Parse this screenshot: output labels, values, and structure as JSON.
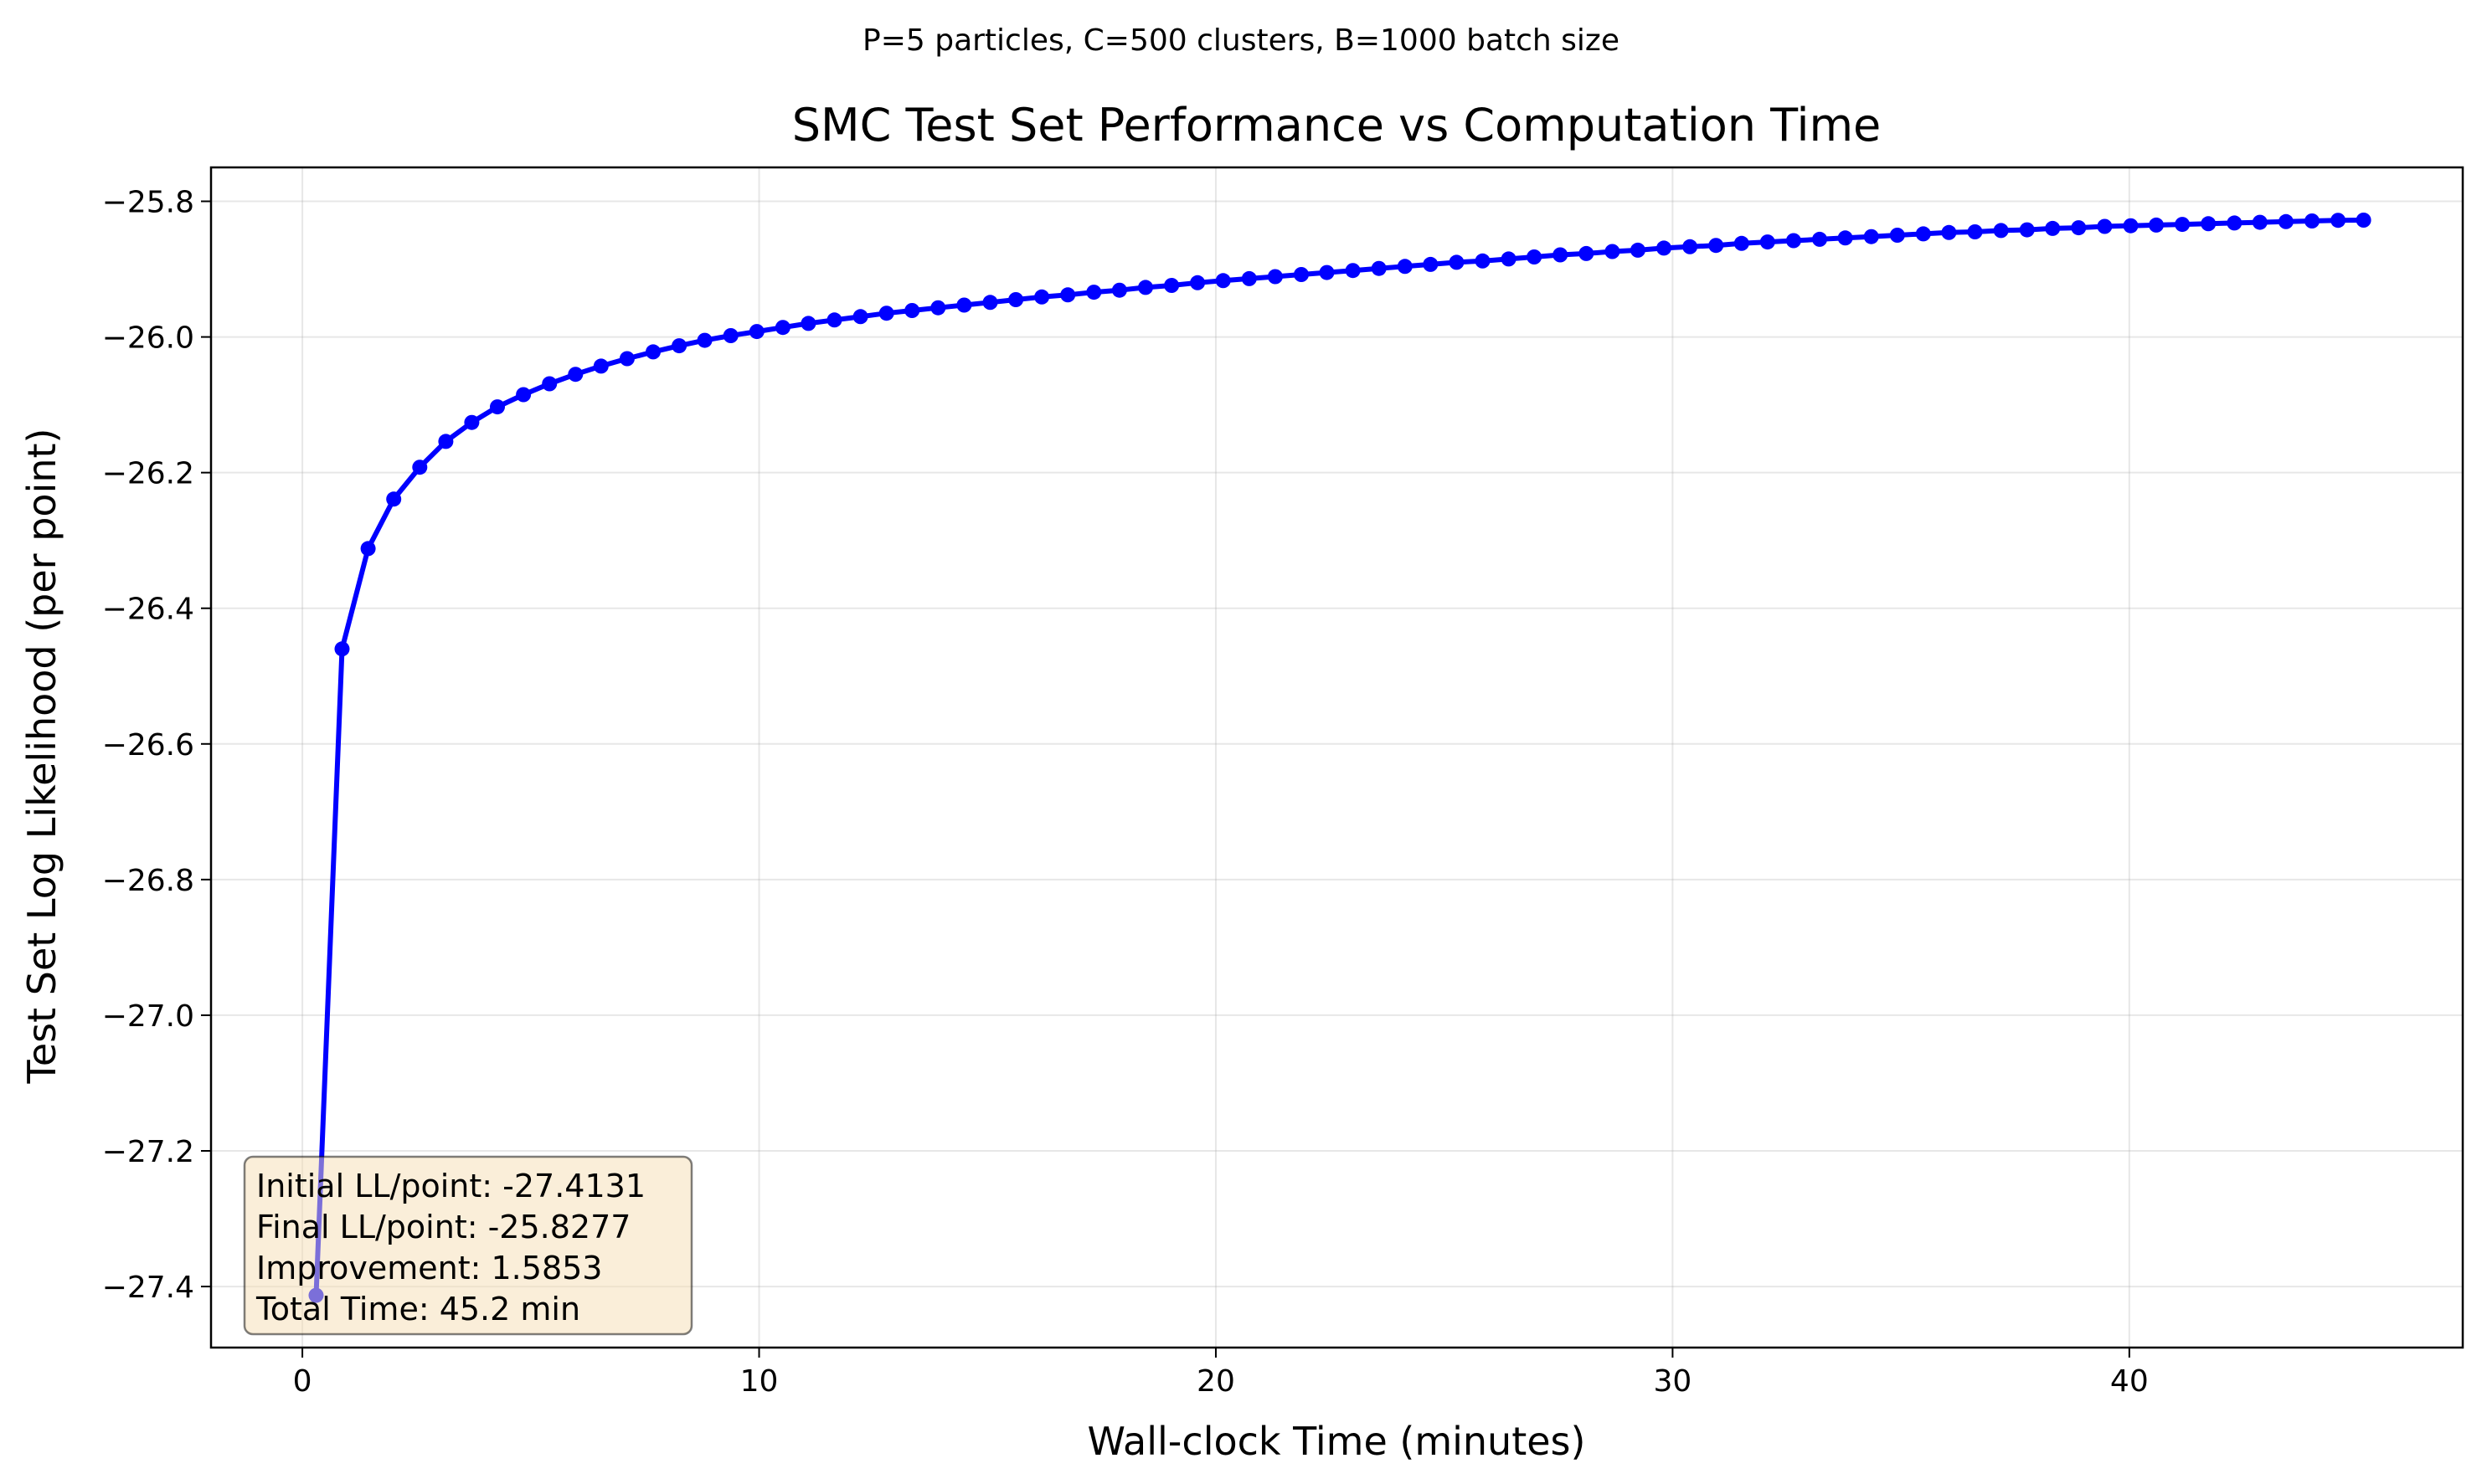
{
  "chart_data": {
    "type": "line",
    "suptitle": "P=5 particles, C=500 clusters, B=1000 batch size",
    "title": "SMC Test Set Performance vs Computation Time",
    "xlabel": "Wall-clock Time (minutes)",
    "ylabel": "Test Set Log Likelihood (per point)",
    "xlim": [
      -2.0,
      47.3
    ],
    "ylim": [
      -27.49,
      -25.75
    ],
    "xticks": [
      0,
      10,
      20,
      30,
      40
    ],
    "xtick_labels": [
      "0",
      "10",
      "20",
      "30",
      "40"
    ],
    "yticks": [
      -25.8,
      -26.0,
      -26.2,
      -26.4,
      -26.6,
      -26.8,
      -27.0,
      -27.2,
      -27.4
    ],
    "ytick_labels": [
      "−25.8",
      "−26.0",
      "−26.2",
      "−26.4",
      "−26.6",
      "−26.8",
      "−27.0",
      "−27.2",
      "−27.4"
    ],
    "grid": true,
    "series_color": "#0000ff",
    "series": [
      {
        "x": [
          0.3,
          0.87,
          1.44,
          2.0,
          2.57,
          3.14,
          3.71,
          4.27,
          4.84,
          5.41,
          5.98,
          6.54,
          7.11,
          7.68,
          8.25,
          8.81,
          9.38,
          9.95,
          10.52,
          11.08,
          11.65,
          12.22,
          12.79,
          13.35,
          13.92,
          14.49,
          15.06,
          15.62,
          16.19,
          16.76,
          17.33,
          17.89,
          18.46,
          19.03,
          19.6,
          20.16,
          20.73,
          21.3,
          21.87,
          22.43,
          23.0,
          23.57,
          24.14,
          24.7,
          25.27,
          25.84,
          26.41,
          26.97,
          27.54,
          28.11,
          28.68,
          29.24,
          29.81,
          30.38,
          30.95,
          31.51,
          32.08,
          32.65,
          33.22,
          33.78,
          34.35,
          34.92,
          35.49,
          36.05,
          36.62,
          37.19,
          37.76,
          38.32,
          38.89,
          39.46,
          40.03,
          40.59,
          41.16,
          41.73,
          42.3,
          42.86,
          43.43,
          44.0,
          44.57,
          45.13
        ],
        "y": [
          -27.413,
          -26.46,
          -26.312,
          -26.239,
          -26.192,
          -26.154,
          -26.126,
          -26.103,
          -26.085,
          -26.069,
          -26.055,
          -26.043,
          -26.032,
          -26.022,
          -26.013,
          -26.005,
          -25.998,
          -25.992,
          -25.986,
          -25.98,
          -25.975,
          -25.97,
          -25.965,
          -25.961,
          -25.957,
          -25.953,
          -25.949,
          -25.945,
          -25.941,
          -25.938,
          -25.934,
          -25.931,
          -25.927,
          -25.924,
          -25.92,
          -25.917,
          -25.914,
          -25.911,
          -25.908,
          -25.905,
          -25.902,
          -25.899,
          -25.896,
          -25.893,
          -25.89,
          -25.888,
          -25.885,
          -25.882,
          -25.879,
          -25.877,
          -25.874,
          -25.872,
          -25.869,
          -25.867,
          -25.865,
          -25.862,
          -25.86,
          -25.858,
          -25.856,
          -25.854,
          -25.852,
          -25.85,
          -25.848,
          -25.846,
          -25.845,
          -25.843,
          -25.842,
          -25.84,
          -25.839,
          -25.837,
          -25.836,
          -25.835,
          -25.834,
          -25.833,
          -25.832,
          -25.831,
          -25.83,
          -25.829,
          -25.828,
          -25.8277
        ]
      }
    ],
    "stats_box": {
      "lines": [
        "Initial LL/point: -27.4131",
        "Final LL/point: -25.8277",
        "Improvement: 1.5853",
        "Total Time: 45.2 min"
      ],
      "placement": "bottom-left",
      "facecolor": "#f5deb3"
    }
  }
}
